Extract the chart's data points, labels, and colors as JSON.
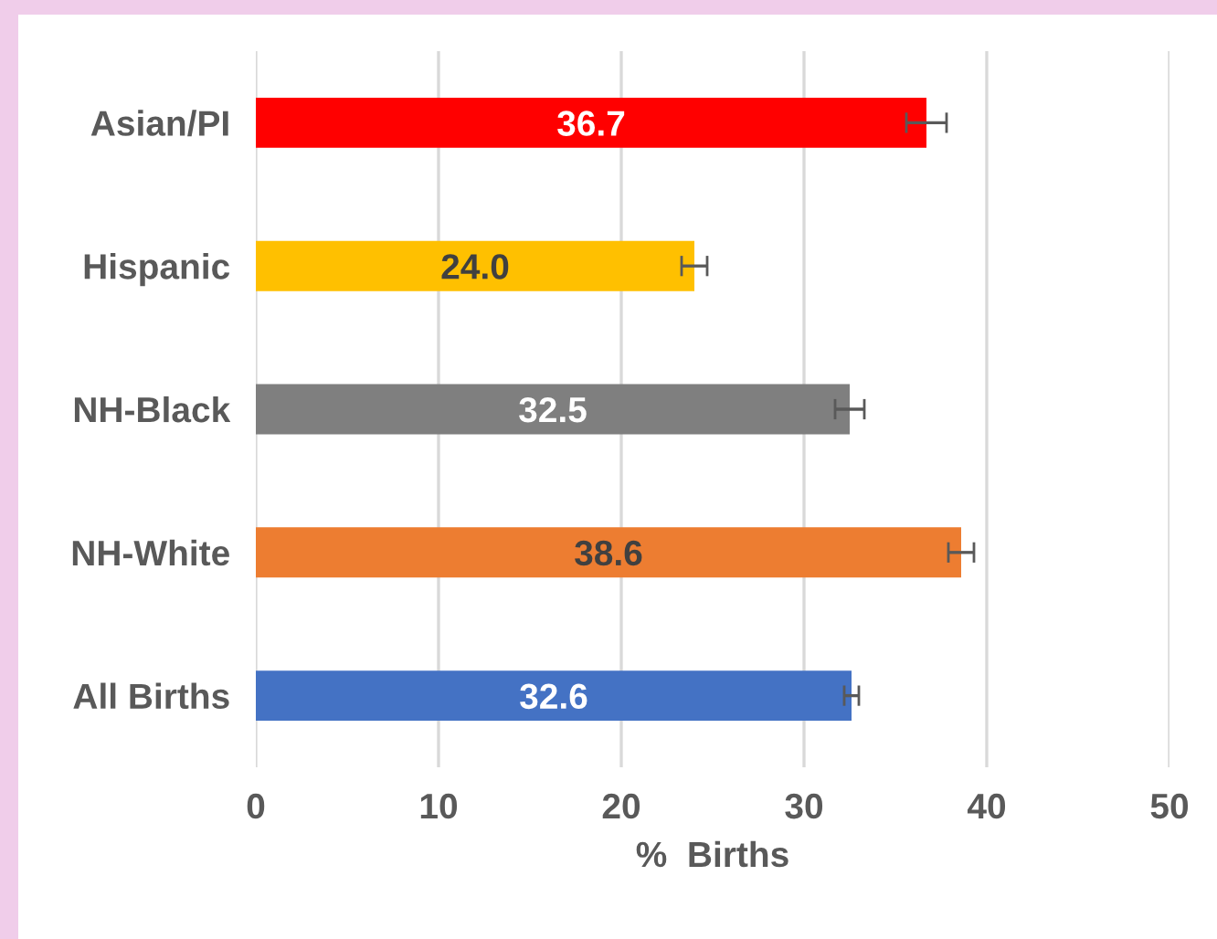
{
  "chart_data": {
    "type": "bar",
    "orientation": "horizontal",
    "xlabel": "%  Births",
    "categories": [
      "Asian/PI",
      "Hispanic",
      "NH-Black",
      "NH-White",
      "All Births"
    ],
    "values": [
      36.7,
      24.0,
      32.5,
      38.6,
      32.6
    ],
    "colors": [
      "#ff0000",
      "#ffc000",
      "#7f7f7f",
      "#ed7d31",
      "#4472c4"
    ],
    "errors": [
      1.1,
      0.7,
      0.8,
      0.7,
      0.4
    ],
    "xlim": [
      0,
      50
    ],
    "xticks": [
      0,
      10,
      20,
      30,
      40,
      50
    ],
    "grid": "x",
    "value_labels": [
      "36.7",
      "24.0",
      "32.5",
      "38.6",
      "32.6"
    ]
  }
}
